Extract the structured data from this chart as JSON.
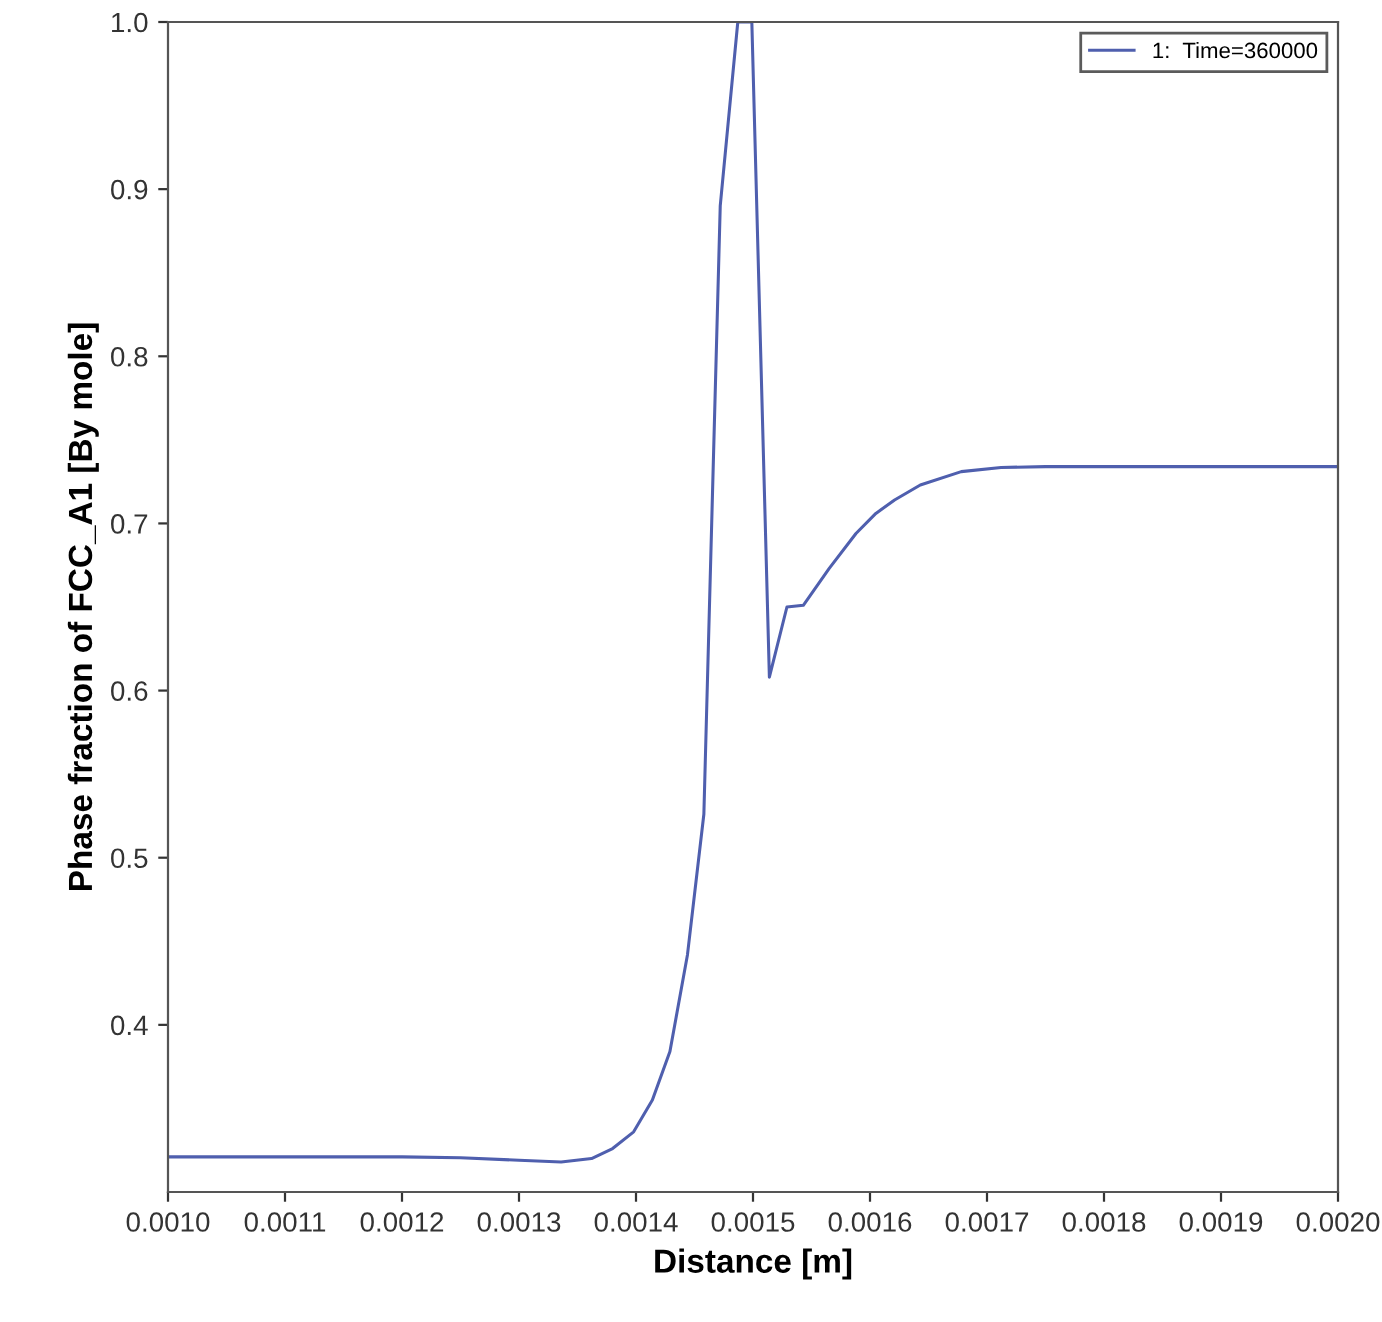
{
  "chart_data": {
    "type": "line",
    "xlabel": "Distance [m]",
    "ylabel": "Phase fraction of FCC_A1 [By mole]",
    "xlim": [
      0.001,
      0.002
    ],
    "ylim": [
      0.3,
      1.0
    ],
    "xticks": [
      {
        "value": 0.001,
        "label": "0.0010"
      },
      0.0011,
      0.0012,
      0.0013,
      0.0014,
      0.0015,
      0.0016,
      0.0017,
      0.0018,
      0.0019,
      {
        "value": 0.002,
        "label": "0.0020"
      }
    ],
    "yticks": [
      0.4,
      0.5,
      0.6,
      0.7,
      0.8,
      0.9,
      {
        "value": 1.0,
        "label": "1.0"
      }
    ],
    "grid": false,
    "legend": "top right",
    "marker": "none",
    "line_style": "solid",
    "series": [
      {
        "name": "1:  Time=360000",
        "color": "#4f5fae",
        "x": [
          0.001,
          0.0011,
          0.0012,
          0.00125,
          0.0013,
          0.001336,
          0.001362,
          0.00138,
          0.001398,
          0.001414,
          0.001429,
          0.001444,
          0.001458,
          0.001472,
          0.001487,
          0.001499,
          0.001514,
          0.001529,
          0.001543,
          0.001565,
          0.001588,
          0.001605,
          0.001621,
          0.001643,
          0.001678,
          0.001712,
          0.00175,
          0.0018,
          0.0019,
          0.002
        ],
        "values": [
          0.321,
          0.321,
          0.321,
          0.3205,
          0.319,
          0.318,
          0.32,
          0.326,
          0.336,
          0.355,
          0.384,
          0.442,
          0.526,
          0.89,
          1.0,
          1.0,
          0.608,
          0.65,
          0.651,
          0.673,
          0.694,
          0.706,
          0.714,
          0.723,
          0.731,
          0.7335,
          0.734,
          0.734,
          0.734,
          0.734
        ]
      }
    ]
  }
}
